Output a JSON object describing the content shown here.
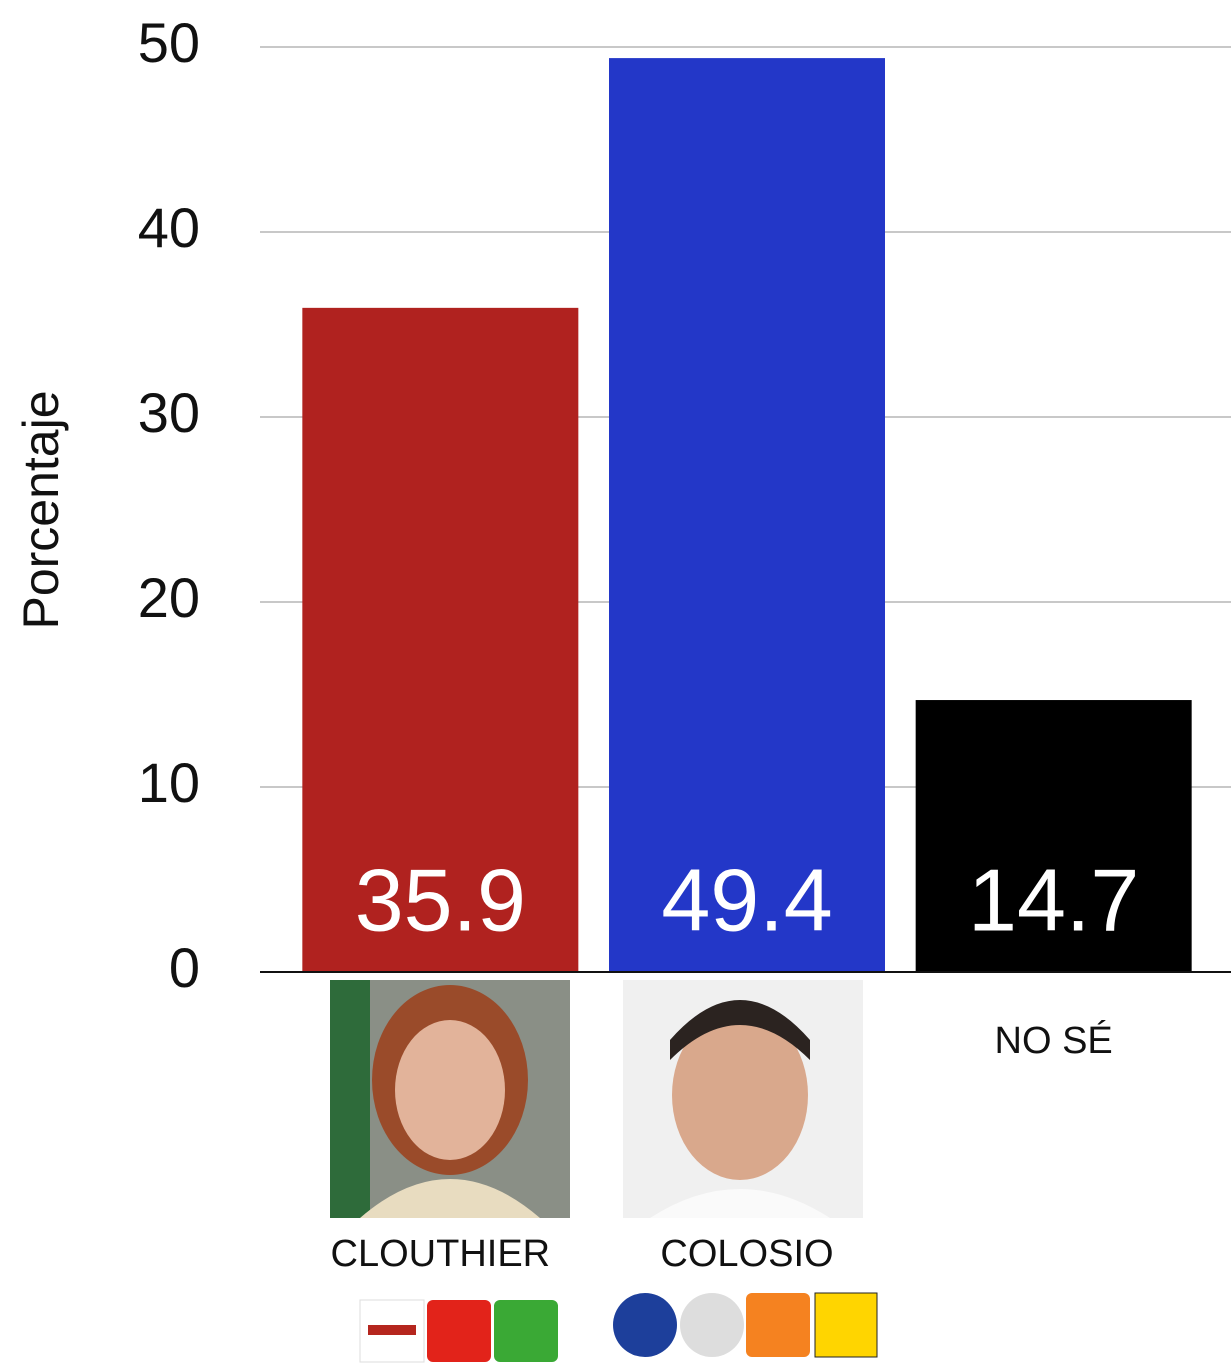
{
  "chart_data": {
    "type": "bar",
    "y_label": "Porcentaje",
    "categories": [
      "CLOUTHIER",
      "COLOSIO",
      "NO SÉ"
    ],
    "values": [
      35.9,
      49.4,
      14.7
    ],
    "colors": [
      "#b0221f",
      "#2337c8",
      "#000000"
    ],
    "ylim": [
      0,
      50
    ],
    "yticks": [
      0,
      10,
      20,
      30,
      40,
      50
    ],
    "grid": true
  }
}
